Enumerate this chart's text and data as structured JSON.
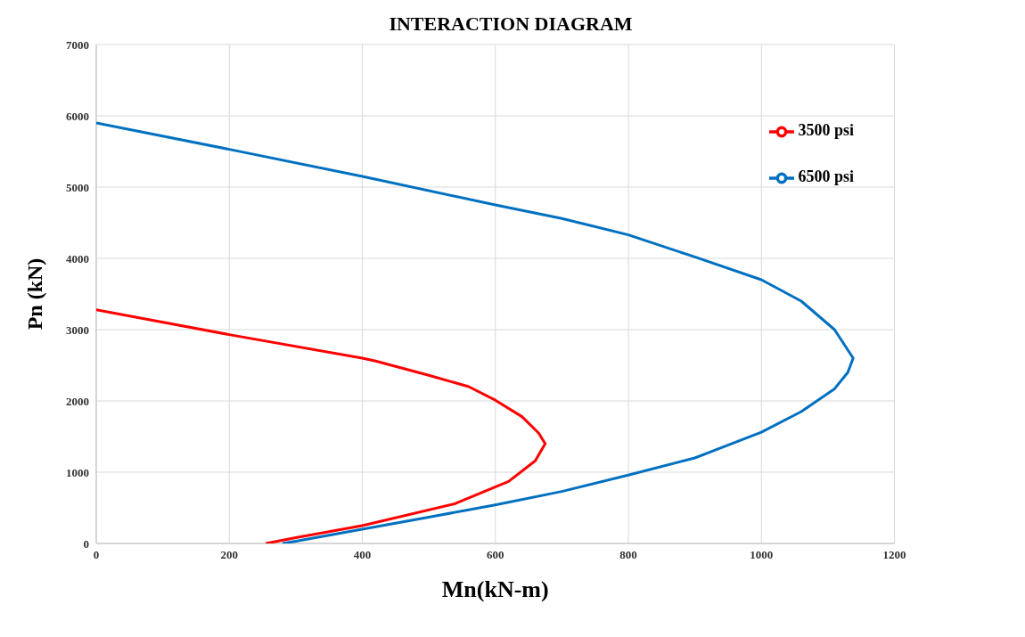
{
  "chart_data": {
    "type": "line",
    "title": "INTERACTION DIAGRAM",
    "xlabel": "Mn(kN-m)",
    "ylabel": "Pn (kN)",
    "xlim": [
      0,
      1200
    ],
    "xticks": [
      0,
      200,
      400,
      600,
      800,
      1000,
      1200
    ],
    "ylim": [
      0,
      7000
    ],
    "yticks": [
      0,
      1000,
      2000,
      3000,
      4000,
      5000,
      6000,
      7000
    ],
    "grid": true,
    "legend": "top right",
    "marker": "none",
    "line_style": "solid",
    "series": [
      {
        "name": "6500 psi",
        "color": "#0070c0",
        "x": [
          0,
          200,
          400,
          600,
          700,
          800,
          900,
          1000,
          1060,
          1110,
          1138,
          1130,
          1110,
          1060,
          1000,
          900,
          800,
          700,
          600,
          500,
          400,
          300,
          280
        ],
        "values": [
          5900,
          5530,
          5150,
          4750,
          4560,
          4330,
          4020,
          3700,
          3400,
          3000,
          2600,
          2400,
          2170,
          1850,
          1560,
          1200,
          960,
          730,
          540,
          370,
          200,
          30,
          0
        ]
      },
      {
        "name": "3500 psi",
        "color": "#ff0000",
        "x": [
          0,
          200,
          400,
          420,
          500,
          560,
          600,
          640,
          665,
          675,
          660,
          620,
          540,
          400,
          300,
          255
        ],
        "values": [
          3280,
          2930,
          2600,
          2560,
          2360,
          2200,
          2010,
          1780,
          1550,
          1400,
          1160,
          870,
          560,
          250,
          80,
          0
        ]
      }
    ]
  }
}
